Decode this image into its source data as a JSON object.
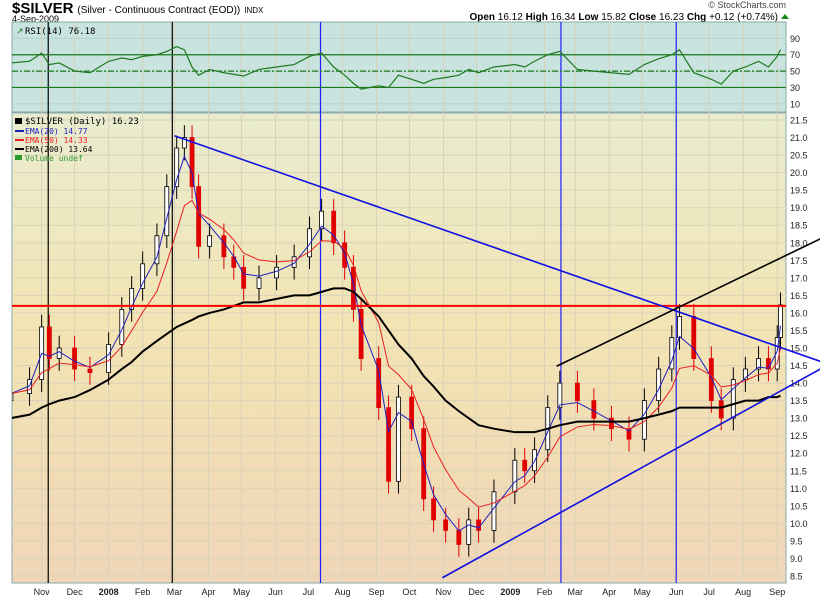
{
  "header": {
    "symbol": "$SILVER",
    "description": "(Silver - Continuous Contract (EOD))",
    "exchange": "INDX",
    "date": "4-Sep-2009",
    "watermark": "© StockCharts.com",
    "open_label": "Open",
    "open": "16.12",
    "high_label": "High",
    "high": "16.34",
    "low_label": "Low",
    "low": "15.82",
    "close_label": "Close",
    "close": "16.23",
    "chg_label": "Chg",
    "chg": "+0.12 (+0.74%)"
  },
  "rsi_panel": {
    "legend": "RSI(14) 76.18"
  },
  "price_panel": {
    "legend": "$SILVER (Daily) 16.23",
    "ema20": "EMA(20) 14.77",
    "ema50": "EMA(50) 14.33",
    "ema200": "EMA(200) 13.64",
    "volume": "Volume undef"
  },
  "chart_data": [
    {
      "type": "line",
      "title": "RSI(14) 76.18",
      "ylim": [
        0,
        110
      ],
      "yticks": [
        "90",
        "70",
        "50",
        "30",
        "10"
      ],
      "reference_lines": [
        70,
        50,
        30
      ],
      "x": [
        "2007-10-04",
        "2007-10-21",
        "2007-11-01",
        "2007-11-08",
        "2007-11-17",
        "2007-12-01",
        "2007-12-15",
        "2008-01-01",
        "2008-01-13",
        "2008-01-22",
        "2008-02-01",
        "2008-02-14",
        "2008-02-23",
        "2008-03-03",
        "2008-03-10",
        "2008-03-17",
        "2008-03-23",
        "2008-04-02",
        "2008-04-15",
        "2008-04-24",
        "2008-05-03",
        "2008-05-17",
        "2008-06-02",
        "2008-06-18",
        "2008-07-02",
        "2008-07-13",
        "2008-07-24",
        "2008-08-03",
        "2008-08-11",
        "2008-08-18",
        "2008-09-03",
        "2008-09-12",
        "2008-09-21",
        "2008-10-03",
        "2008-10-14",
        "2008-10-23",
        "2008-11-03",
        "2008-11-15",
        "2008-11-24",
        "2008-12-03",
        "2008-12-17",
        "2009-01-05",
        "2009-01-14",
        "2009-01-23",
        "2009-02-04",
        "2009-02-15",
        "2009-03-03",
        "2009-03-18",
        "2009-04-03",
        "2009-04-19",
        "2009-05-03",
        "2009-05-16",
        "2009-05-28",
        "2009-06-04",
        "2009-06-17",
        "2009-07-03",
        "2009-07-12",
        "2009-07-23",
        "2009-08-03",
        "2009-08-15",
        "2009-08-24",
        "2009-09-01",
        "2009-09-04"
      ],
      "values": [
        60,
        62,
        72,
        58,
        60,
        50,
        48,
        62,
        66,
        64,
        68,
        70,
        74,
        80,
        76,
        55,
        45,
        52,
        48,
        46,
        44,
        52,
        55,
        58,
        68,
        72,
        55,
        45,
        35,
        28,
        32,
        30,
        45,
        40,
        35,
        40,
        42,
        45,
        52,
        48,
        55,
        58,
        55,
        62,
        70,
        74,
        52,
        50,
        48,
        46,
        58,
        65,
        70,
        76,
        48,
        40,
        34,
        50,
        55,
        62,
        55,
        68,
        76.18
      ]
    },
    {
      "type": "candlestick",
      "title": "$SILVER (Daily) 16.23",
      "xlim": [
        "2007-10-05",
        "2009-09-09"
      ],
      "ylim": [
        8.5,
        21.5
      ],
      "grid": true,
      "legend": "top-left",
      "xticks": [
        "Nov",
        "Dec",
        "2008",
        "Feb",
        "Mar",
        "Apr",
        "May",
        "Jun",
        "Jul",
        "Aug",
        "Sep",
        "Oct",
        "Nov",
        "Dec",
        "2009",
        "Feb",
        "Mar",
        "Apr",
        "May",
        "Jun",
        "Jul",
        "Aug",
        "Sep"
      ],
      "xtick_dates": [
        "2007-11-01",
        "2007-12-01",
        "2008-01-01",
        "2008-02-01",
        "2008-03-01",
        "2008-04-01",
        "2008-05-01",
        "2008-06-01",
        "2008-07-01",
        "2008-08-01",
        "2008-09-01",
        "2008-10-01",
        "2008-11-01",
        "2008-12-01",
        "2009-01-01",
        "2009-02-01",
        "2009-03-01",
        "2009-04-01",
        "2009-05-01",
        "2009-06-01",
        "2009-07-01",
        "2009-08-01",
        "2009-09-01"
      ],
      "yticks": [
        "21.5",
        "21.0",
        "20.5",
        "20.0",
        "19.5",
        "19.0",
        "18.5",
        "18.0",
        "17.5",
        "17.0",
        "16.5",
        "16.0",
        "15.5",
        "15.0",
        "14.5",
        "14.0",
        "13.5",
        "13.0",
        "12.5",
        "12.0",
        "11.5",
        "11.0",
        "10.5",
        "10.0",
        "9.5",
        "9.0",
        "8.5"
      ],
      "close": [
        13.7,
        14.1,
        15.6,
        14.7,
        15.0,
        14.4,
        14.3,
        15.1,
        16.1,
        16.7,
        17.4,
        18.2,
        19.6,
        20.7,
        21.0,
        19.6,
        17.9,
        18.2,
        17.6,
        17.3,
        16.7,
        17.0,
        17.3,
        17.6,
        18.4,
        18.9,
        18.0,
        17.3,
        16.1,
        14.7,
        13.3,
        11.2,
        13.6,
        12.7,
        10.7,
        10.1,
        9.8,
        9.4,
        10.1,
        9.8,
        10.9,
        11.8,
        11.5,
        12.1,
        13.3,
        14.0,
        13.5,
        13.0,
        12.7,
        12.4,
        13.5,
        14.4,
        15.3,
        15.9,
        14.7,
        13.5,
        13.0,
        14.1,
        14.4,
        14.7,
        14.4,
        15.3,
        16.23
      ],
      "series": [
        {
          "name": "EMA(20) 14.77",
          "color": "#2020c0",
          "period": 20
        },
        {
          "name": "EMA(50) 14.33",
          "color": "#e82020",
          "period": 50
        },
        {
          "name": "EMA(200) 13.64",
          "color": "#000000",
          "values": [
            13.0,
            13.1,
            13.3,
            13.4,
            13.5,
            13.6,
            13.8,
            14.1,
            14.4,
            14.6,
            14.9,
            15.2,
            15.4,
            15.6,
            15.7,
            15.8,
            15.9,
            16.0,
            16.1,
            16.2,
            16.3,
            16.3,
            16.4,
            16.5,
            16.5,
            16.6,
            16.7,
            16.7,
            16.6,
            16.4,
            15.9,
            15.5,
            15.1,
            14.7,
            14.2,
            13.9,
            13.5,
            13.2,
            13.0,
            12.8,
            12.7,
            12.6,
            12.6,
            12.6,
            12.7,
            12.8,
            12.9,
            12.9,
            12.9,
            12.9,
            13.0,
            13.1,
            13.2,
            13.3,
            13.3,
            13.3,
            13.3,
            13.4,
            13.5,
            13.5,
            13.6,
            13.6,
            13.64
          ]
        }
      ],
      "annotations": {
        "horizontal_line": {
          "price": 16.2,
          "color": "#ff0000"
        },
        "vertical_lines": [
          {
            "date": "2007-11-07",
            "color": "#000000"
          },
          {
            "date": "2008-02-28",
            "color": "#000000"
          },
          {
            "date": "2008-07-12",
            "color": "#2020ff"
          },
          {
            "date": "2009-02-16",
            "color": "#2020ff"
          },
          {
            "date": "2009-06-01",
            "color": "#2020ff"
          }
        ],
        "trendlines": [
          {
            "from": [
              "2008-03-01",
              21.05
            ],
            "to": [
              "2009-09-09",
              14.96
            ],
            "color": "#1010e0",
            "extend": true
          },
          {
            "from": [
              "2008-10-31",
              8.45
            ],
            "to": [
              "2009-09-09",
              13.86
            ],
            "color": "#1010e0",
            "extend": true
          },
          {
            "from": [
              "2009-02-12",
              14.48
            ],
            "to": [
              "2009-09-09",
              17.64
            ],
            "color": "#000000",
            "extend": true
          }
        ]
      }
    }
  ]
}
